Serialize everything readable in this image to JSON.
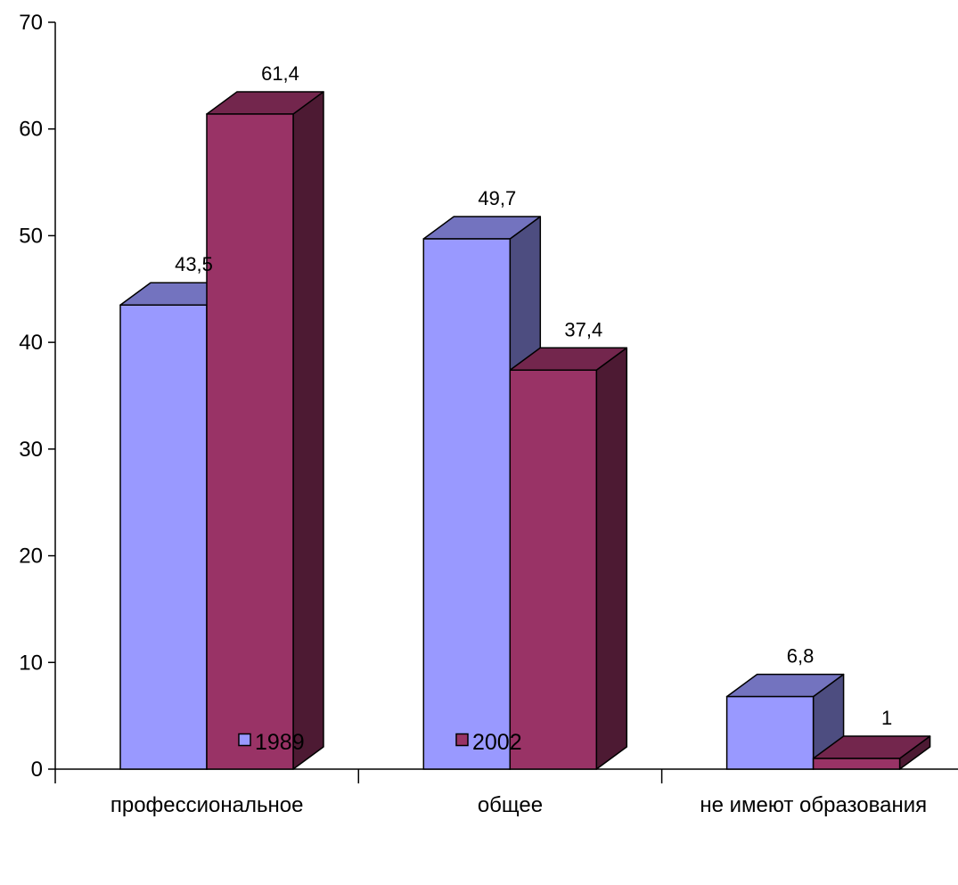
{
  "chart_data": {
    "type": "bar",
    "style": "3d-clustered",
    "categories": [
      "профессиональное",
      "общее",
      "не имеют образования"
    ],
    "series": [
      {
        "name": "1989",
        "values": [
          43.5,
          49.7,
          6.8
        ],
        "labels": [
          "43,5",
          "49,7",
          "6,8"
        ],
        "color": "#9999FF"
      },
      {
        "name": "2002",
        "values": [
          61.4,
          37.4,
          1
        ],
        "labels": [
          "61,4",
          "37,4",
          "1"
        ],
        "color": "#993366"
      }
    ],
    "y_ticks": [
      0,
      10,
      20,
      30,
      40,
      50,
      60,
      70
    ],
    "ylim": [
      0,
      70
    ],
    "grid": false,
    "legend_position": "bottom",
    "title": "",
    "xlabel": "",
    "ylabel": ""
  }
}
